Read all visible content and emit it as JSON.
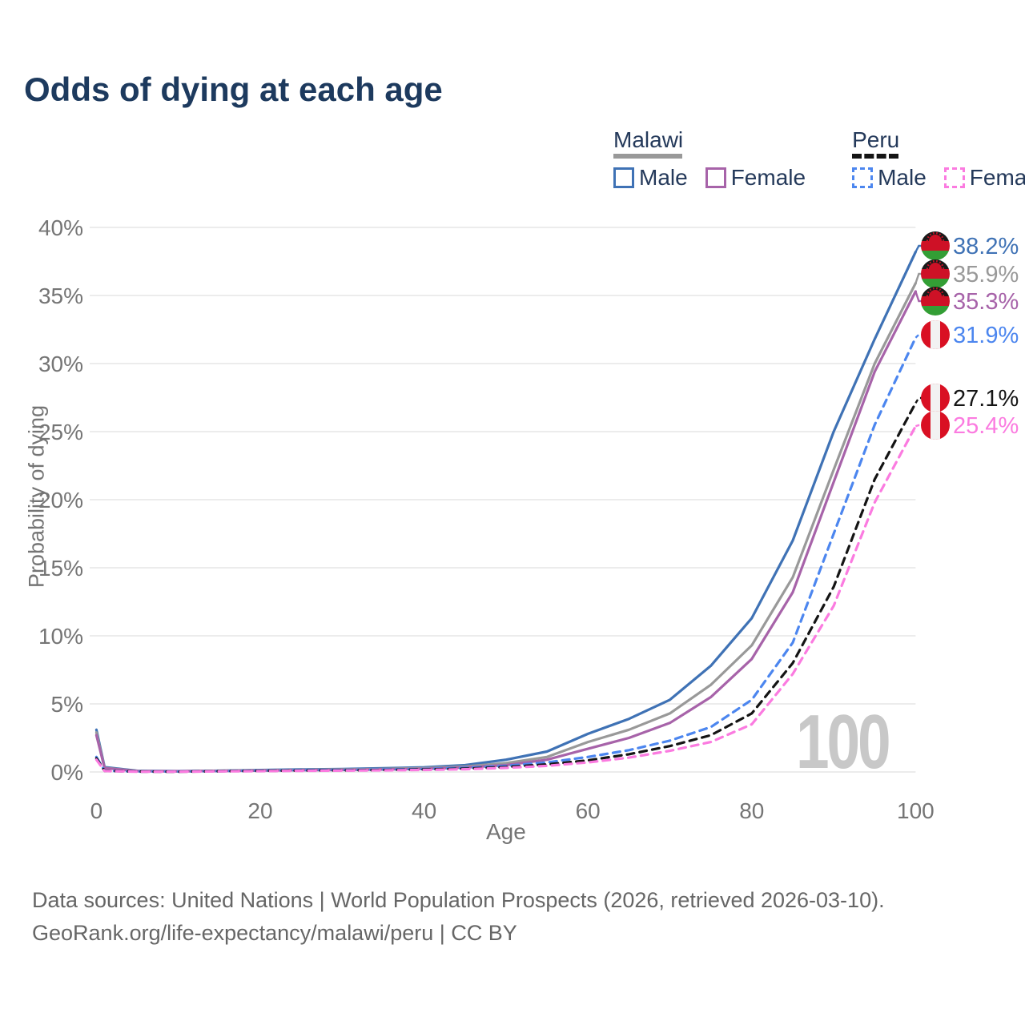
{
  "title": "Odds of dying at each age",
  "legend": {
    "malawi": {
      "label": "Malawi",
      "male": "Male",
      "female": "Female"
    },
    "peru": {
      "label": "Peru",
      "male": "Male",
      "female": "Female"
    }
  },
  "watermark": "100",
  "footer": {
    "line1": "Data sources: United Nations | World Population Prospects (2026, retrieved 2026-03-10).",
    "line2": "GeoRank.org/life-expectancy/malawi/peru | CC BY"
  },
  "colors": {
    "title": "#1d3a5e",
    "legend_text": "#24395a",
    "axis_text": "#757575",
    "gridline": "#ececec",
    "watermark": "#c8c8c8",
    "footer_text": "#666666",
    "malawi_male": "#3f72b5",
    "malawi_total": "#999999",
    "malawi_female": "#a763a9",
    "peru_male": "#4c86ef",
    "peru_total": "#141414",
    "peru_female": "#fb7be0",
    "flag_malawi_black": "#1a1a1a",
    "flag_malawi_red": "#ce1126",
    "flag_malawi_green": "#339e35",
    "flag_peru_red": "#d91023",
    "flag_peru_white": "#f2f2f2"
  },
  "chart_data": {
    "type": "line",
    "title": "Odds of dying at each age",
    "xlabel": "Age",
    "ylabel": "Probability of dying",
    "xlim": [
      0,
      100
    ],
    "ylim": [
      0,
      40
    ],
    "grid": "horizontal",
    "legend_position": "top-right",
    "x_ticks": [
      0,
      20,
      40,
      60,
      80,
      100
    ],
    "y_ticks": [
      "0%",
      "5%",
      "10%",
      "15%",
      "20%",
      "25%",
      "30%",
      "35%",
      "40%"
    ],
    "x": [
      0,
      1,
      5,
      10,
      15,
      20,
      25,
      30,
      35,
      40,
      45,
      50,
      55,
      60,
      65,
      70,
      75,
      80,
      85,
      90,
      95,
      100
    ],
    "series": [
      {
        "name": "Malawi Male",
        "country": "malawi",
        "style": "solid",
        "color": "#3f72b5",
        "end_label": "38.2%",
        "flag": "malawi",
        "values": [
          3.1,
          0.35,
          0.08,
          0.06,
          0.09,
          0.14,
          0.18,
          0.22,
          0.27,
          0.34,
          0.5,
          0.9,
          1.5,
          2.8,
          3.9,
          5.3,
          7.8,
          11.3,
          17.0,
          25.0,
          31.8,
          38.2
        ]
      },
      {
        "name": "Malawi Both Sexes",
        "country": "malawi",
        "style": "solid",
        "color": "#999999",
        "end_label": "35.9%",
        "flag": "malawi",
        "values": [
          2.9,
          0.3,
          0.07,
          0.05,
          0.08,
          0.12,
          0.15,
          0.18,
          0.22,
          0.28,
          0.4,
          0.65,
          1.1,
          2.2,
          3.1,
          4.3,
          6.4,
          9.3,
          14.3,
          22.2,
          30.0,
          35.9
        ]
      },
      {
        "name": "Malawi Female",
        "country": "malawi",
        "style": "solid",
        "color": "#a763a9",
        "end_label": "35.3%",
        "flag": "malawi",
        "values": [
          2.7,
          0.28,
          0.06,
          0.05,
          0.07,
          0.1,
          0.13,
          0.15,
          0.18,
          0.23,
          0.33,
          0.5,
          0.9,
          1.7,
          2.5,
          3.6,
          5.5,
          8.3,
          13.2,
          21.3,
          29.4,
          35.3
        ]
      },
      {
        "name": "Peru Male",
        "country": "peru",
        "style": "dashed",
        "color": "#4c86ef",
        "end_label": "31.9%",
        "flag": "peru",
        "values": [
          1.1,
          0.09,
          0.03,
          0.03,
          0.06,
          0.1,
          0.13,
          0.15,
          0.18,
          0.22,
          0.3,
          0.45,
          0.7,
          1.1,
          1.6,
          2.3,
          3.3,
          5.3,
          9.5,
          17.5,
          25.5,
          31.9
        ]
      },
      {
        "name": "Peru Both Sexes",
        "country": "peru",
        "style": "dashed",
        "color": "#141414",
        "end_label": "27.1%",
        "flag": "peru",
        "values": [
          1.0,
          0.08,
          0.03,
          0.02,
          0.05,
          0.08,
          0.1,
          0.12,
          0.14,
          0.18,
          0.24,
          0.36,
          0.55,
          0.85,
          1.3,
          1.9,
          2.7,
          4.3,
          8.0,
          13.6,
          21.5,
          27.1
        ]
      },
      {
        "name": "Peru Female",
        "country": "peru",
        "style": "dashed",
        "color": "#fb7be0",
        "end_label": "25.4%",
        "flag": "peru",
        "values": [
          0.9,
          0.07,
          0.02,
          0.02,
          0.04,
          0.06,
          0.08,
          0.1,
          0.12,
          0.15,
          0.2,
          0.3,
          0.45,
          0.7,
          1.05,
          1.55,
          2.2,
          3.5,
          7.2,
          12.2,
          19.8,
          25.4
        ]
      }
    ]
  }
}
